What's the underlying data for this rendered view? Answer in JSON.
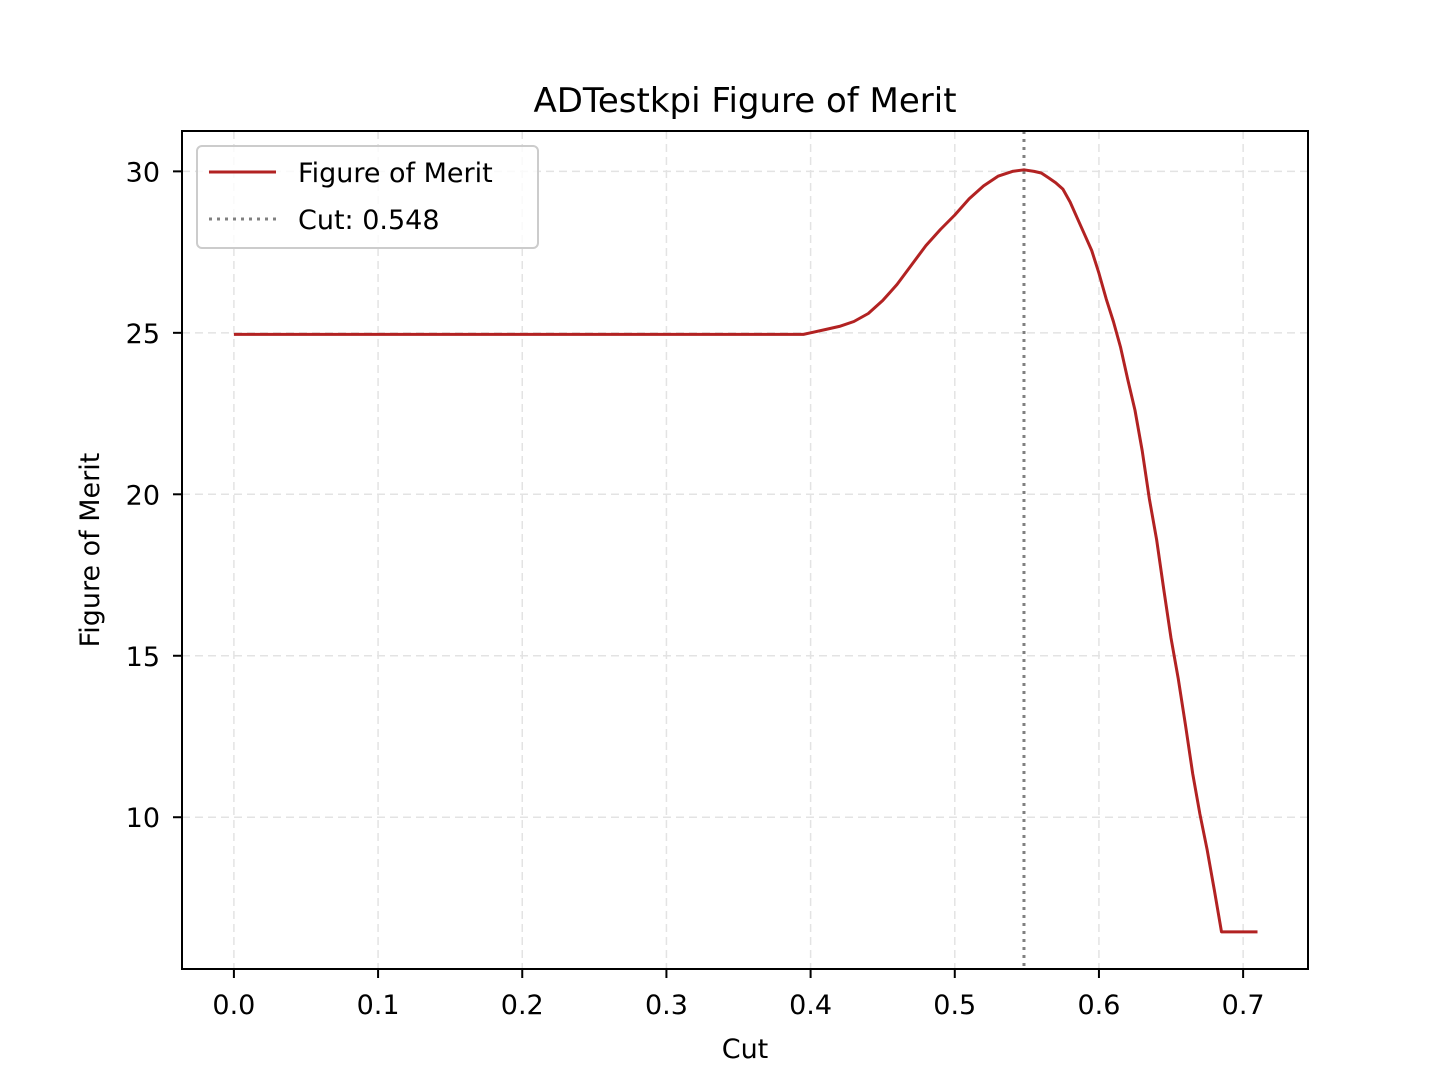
{
  "chart_data": {
    "type": "line",
    "title": "ADTestkpi Figure of Merit",
    "xlabel": "Cut",
    "ylabel": "Figure of Merit",
    "xlim": [
      -0.036,
      0.745
    ],
    "ylim": [
      5.3,
      31.25
    ],
    "xticks": [
      0.0,
      0.1,
      0.2,
      0.3,
      0.4,
      0.5,
      0.6,
      0.7
    ],
    "xtick_labels": [
      "0.0",
      "0.1",
      "0.2",
      "0.3",
      "0.4",
      "0.5",
      "0.6",
      "0.7"
    ],
    "yticks": [
      10,
      15,
      20,
      25,
      30
    ],
    "ytick_labels": [
      "10",
      "15",
      "20",
      "25",
      "30"
    ],
    "grid": true,
    "legend_position": "top-left",
    "series": [
      {
        "name": "Figure of Merit",
        "color": "#b22222",
        "style": "solid",
        "x": [
          0.0,
          0.05,
          0.1,
          0.15,
          0.2,
          0.25,
          0.3,
          0.35,
          0.39,
          0.395,
          0.4,
          0.41,
          0.42,
          0.43,
          0.44,
          0.45,
          0.46,
          0.47,
          0.48,
          0.49,
          0.5,
          0.51,
          0.52,
          0.53,
          0.54,
          0.548,
          0.555,
          0.56,
          0.565,
          0.57,
          0.575,
          0.58,
          0.585,
          0.59,
          0.595,
          0.6,
          0.605,
          0.61,
          0.615,
          0.62,
          0.625,
          0.63,
          0.635,
          0.64,
          0.645,
          0.65,
          0.655,
          0.66,
          0.665,
          0.67,
          0.675,
          0.68,
          0.685,
          0.69,
          0.695,
          0.7,
          0.703,
          0.706,
          0.709,
          0.71
        ],
        "y": [
          24.95,
          24.95,
          24.95,
          24.95,
          24.95,
          24.95,
          24.95,
          24.95,
          24.95,
          24.95,
          25.0,
          25.1,
          25.2,
          25.35,
          25.6,
          26.0,
          26.5,
          27.1,
          27.7,
          28.2,
          28.65,
          29.15,
          29.55,
          29.85,
          30.0,
          30.05,
          30.0,
          29.95,
          29.8,
          29.65,
          29.45,
          29.05,
          28.55,
          28.05,
          27.55,
          26.85,
          26.05,
          25.35,
          24.55,
          23.55,
          22.6,
          21.35,
          19.85,
          18.6,
          17.05,
          15.55,
          14.3,
          12.85,
          11.35,
          10.1,
          9.0,
          7.75,
          6.45,
          6.45,
          6.45,
          6.45,
          6.45,
          6.45,
          6.45,
          6.45
        ]
      }
    ],
    "vline": {
      "name": "Cut: 0.548",
      "x": 0.548,
      "color": "#808080",
      "style": "dotted"
    }
  }
}
